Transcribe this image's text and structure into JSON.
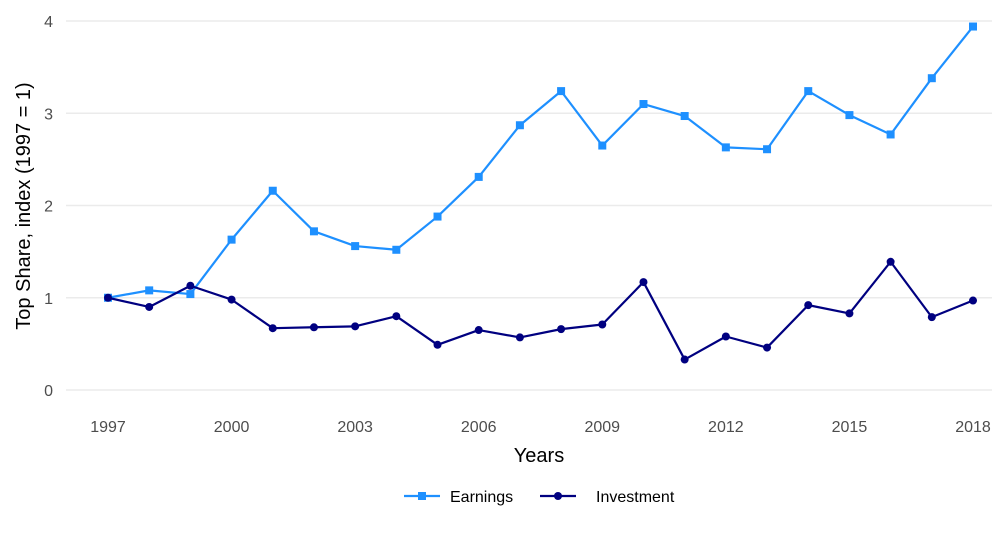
{
  "chart_data": {
    "type": "line",
    "xlabel": "Years",
    "ylabel": "Top Share, index (1997 = 1)",
    "x": [
      1997,
      1998,
      1999,
      2000,
      2001,
      2002,
      2003,
      2004,
      2005,
      2006,
      2007,
      2008,
      2009,
      2010,
      2011,
      2012,
      2013,
      2014,
      2015,
      2016,
      2017,
      2018
    ],
    "xticks": [
      1997,
      2000,
      2003,
      2006,
      2009,
      2012,
      2015,
      2018
    ],
    "yticks": [
      0,
      1,
      2,
      3,
      4
    ],
    "xlim": [
      1997,
      2018
    ],
    "ylim": [
      0,
      4
    ],
    "grid": true,
    "legend_position": "bottom",
    "series": [
      {
        "name": "Earnings",
        "color": "#1e90ff",
        "marker": "square",
        "values": [
          1.0,
          1.08,
          1.04,
          1.63,
          2.16,
          1.72,
          1.56,
          1.52,
          1.88,
          2.31,
          2.87,
          3.24,
          2.65,
          3.1,
          2.97,
          2.63,
          2.61,
          3.24,
          2.98,
          2.77,
          3.38,
          3.94
        ]
      },
      {
        "name": "Investment",
        "color": "#000080",
        "marker": "circle",
        "values": [
          1.0,
          0.9,
          1.13,
          0.98,
          0.67,
          0.68,
          0.69,
          0.8,
          0.49,
          0.65,
          0.57,
          0.66,
          0.71,
          1.17,
          0.33,
          0.58,
          0.46,
          0.92,
          0.83,
          1.39,
          0.79,
          0.97
        ]
      }
    ]
  }
}
